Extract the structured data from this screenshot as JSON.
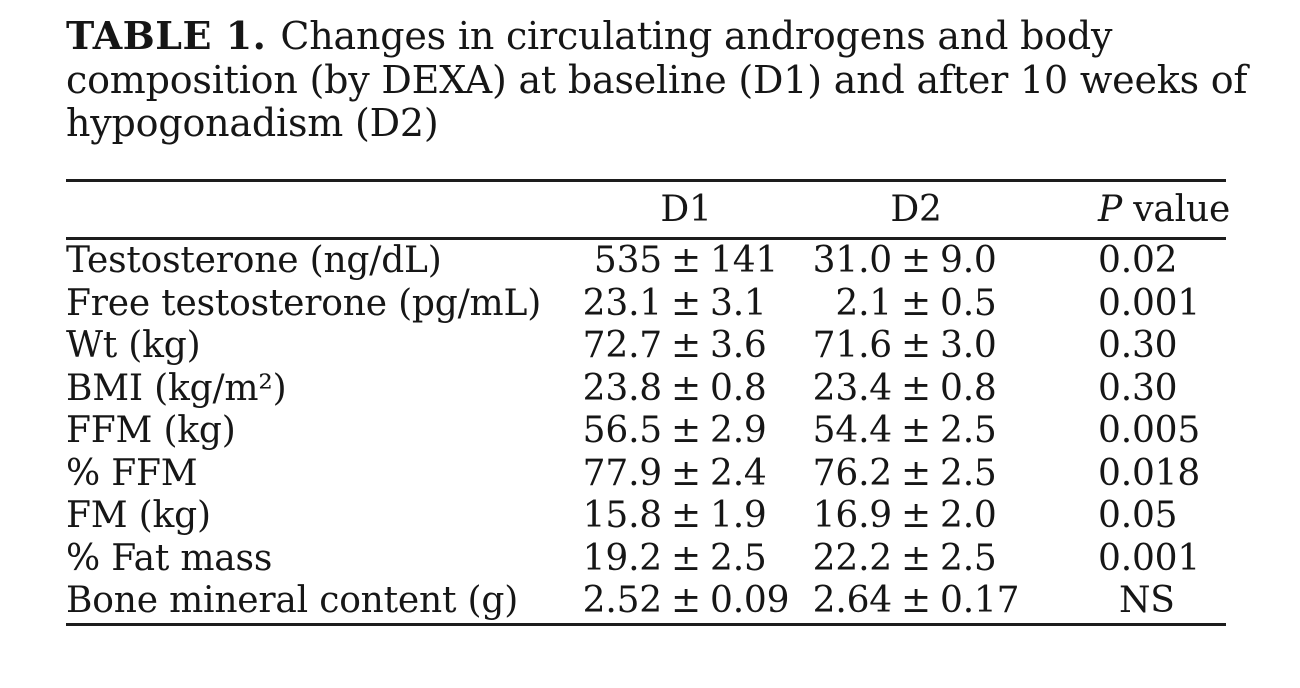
{
  "caption": {
    "label": "TABLE 1.",
    "line1": "Changes in circulating androgens and body",
    "line2": "composition (by DEXA) at baseline (D1) and after 10 weeks of",
    "line3": "hypogonadism (D2)"
  },
  "table": {
    "plus_minus": "±",
    "headers": {
      "metric": "",
      "d1": "D1",
      "d2": "D2",
      "p_italic": "P",
      "p_rest": " value"
    },
    "rows": [
      {
        "label": "Testosterone (ng/dL)",
        "d1_mean": "535",
        "d1_sd": "141",
        "d2_mean": "31.0",
        "d2_sd": "9.0",
        "p": "0.02"
      },
      {
        "label": "Free testosterone (pg/mL)",
        "d1_mean": "23.1",
        "d1_sd": "3.1",
        "d2_mean": "2.1",
        "d2_sd": "0.5",
        "p": "0.001"
      },
      {
        "label": "Wt (kg)",
        "d1_mean": "72.7",
        "d1_sd": "3.6",
        "d2_mean": "71.6",
        "d2_sd": "3.0",
        "p": "0.30"
      },
      {
        "label": "BMI (kg/m²)",
        "d1_mean": "23.8",
        "d1_sd": "0.8",
        "d2_mean": "23.4",
        "d2_sd": "0.8",
        "p": "0.30"
      },
      {
        "label": "FFM (kg)",
        "d1_mean": "56.5",
        "d1_sd": "2.9",
        "d2_mean": "54.4",
        "d2_sd": "2.5",
        "p": "0.005"
      },
      {
        "label": "% FFM",
        "d1_mean": "77.9",
        "d1_sd": "2.4",
        "d2_mean": "76.2",
        "d2_sd": "2.5",
        "p": "0.018"
      },
      {
        "label": "FM (kg)",
        "d1_mean": "15.8",
        "d1_sd": "1.9",
        "d2_mean": "16.9",
        "d2_sd": "2.0",
        "p": "0.05"
      },
      {
        "label": "% Fat mass",
        "d1_mean": "19.2",
        "d1_sd": "2.5",
        "d2_mean": "22.2",
        "d2_sd": "2.5",
        "p": "0.001"
      },
      {
        "label": "Bone mineral content (g)",
        "d1_mean": "2.52",
        "d1_sd": "0.09",
        "d2_mean": "2.64",
        "d2_sd": "0.17",
        "p": "NS"
      }
    ]
  }
}
